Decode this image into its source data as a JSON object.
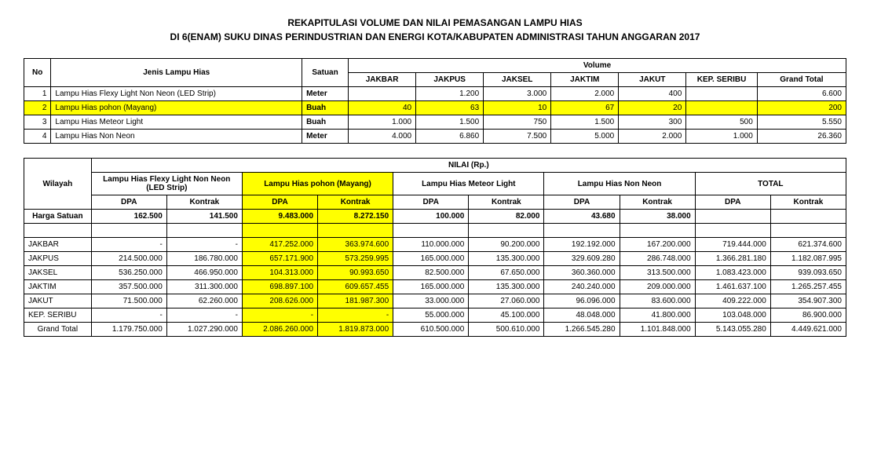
{
  "title_l1": "REKAPITULASI VOLUME DAN NILAI PEMASANGAN LAMPU HIAS",
  "title_l2": "DI 6(ENAM) SUKU DINAS PERINDUSTRIAN DAN ENERGI KOTA/KABUPATEN ADMINISTRASI TAHUN ANGGARAN 2017",
  "t1": {
    "h_no": "No",
    "h_jenis": "Jenis Lampu Hias",
    "h_satuan": "Satuan",
    "h_volume": "Volume",
    "regions": [
      "JAKBAR",
      "JAKPUS",
      "JAKSEL",
      "JAKTIM",
      "JAKUT",
      "KEP. SERIBU"
    ],
    "h_gt": "Grand Total",
    "rows": [
      {
        "no": "1",
        "jenis": "Lampu Hias Flexy Light Non Neon (LED Strip)",
        "sat": "Meter",
        "v": [
          "",
          "1.200",
          "3.000",
          "2.000",
          "400",
          ""
        ],
        "gt": "6.600",
        "hl": false
      },
      {
        "no": "2",
        "jenis": "Lampu Hias pohon (Mayang)",
        "sat": "Buah",
        "v": [
          "40",
          "63",
          "10",
          "67",
          "20",
          ""
        ],
        "gt": "200",
        "hl": true
      },
      {
        "no": "3",
        "jenis": "Lampu Hias Meteor Light",
        "sat": "Buah",
        "v": [
          "1.000",
          "1.500",
          "750",
          "1.500",
          "300",
          "500"
        ],
        "gt": "5.550",
        "hl": false
      },
      {
        "no": "4",
        "jenis": "Lampu Hias Non Neon",
        "sat": "Meter",
        "v": [
          "4.000",
          "6.860",
          "7.500",
          "5.000",
          "2.000",
          "1.000"
        ],
        "gt": "26.360",
        "hl": false
      }
    ]
  },
  "t2": {
    "h_wilayah": "Wilayah",
    "h_nilai": "NILAI (Rp.)",
    "h_dpa": "DPA",
    "h_kontrak": "Kontrak",
    "h_total": "TOTAL",
    "h_harga": "Harga Satuan",
    "groups": [
      "Lampu Hias Flexy Light Non Neon (LED Strip)",
      "Lampu Hias pohon (Mayang)",
      "Lampu Hias Meteor Light",
      "Lampu Hias Non Neon"
    ],
    "group_hl": [
      false,
      true,
      false,
      false
    ],
    "harga": [
      "162.500",
      "141.500",
      "9.483.000",
      "8.272.150",
      "100.000",
      "82.000",
      "43.680",
      "38.000",
      "",
      ""
    ],
    "rows": [
      {
        "w": "JAKBAR",
        "v": [
          "-",
          "-",
          "417.252.000",
          "363.974.600",
          "110.000.000",
          "90.200.000",
          "192.192.000",
          "167.200.000",
          "719.444.000",
          "621.374.600"
        ]
      },
      {
        "w": "JAKPUS",
        "v": [
          "214.500.000",
          "186.780.000",
          "657.171.900",
          "573.259.995",
          "165.000.000",
          "135.300.000",
          "329.609.280",
          "286.748.000",
          "1.366.281.180",
          "1.182.087.995"
        ]
      },
      {
        "w": "JAKSEL",
        "v": [
          "536.250.000",
          "466.950.000",
          "104.313.000",
          "90.993.650",
          "82.500.000",
          "67.650.000",
          "360.360.000",
          "313.500.000",
          "1.083.423.000",
          "939.093.650"
        ]
      },
      {
        "w": "JAKTIM",
        "v": [
          "357.500.000",
          "311.300.000",
          "698.897.100",
          "609.657.455",
          "165.000.000",
          "135.300.000",
          "240.240.000",
          "209.000.000",
          "1.461.637.100",
          "1.265.257.455"
        ]
      },
      {
        "w": "JAKUT",
        "v": [
          "71.500.000",
          "62.260.000",
          "208.626.000",
          "181.987.300",
          "33.000.000",
          "27.060.000",
          "96.096.000",
          "83.600.000",
          "409.222.000",
          "354.907.300"
        ]
      },
      {
        "w": "KEP. SERIBU",
        "v": [
          "-",
          "-",
          "-",
          "-",
          "55.000.000",
          "45.100.000",
          "48.048.000",
          "41.800.000",
          "103.048.000",
          "86.900.000"
        ]
      }
    ],
    "gt_label": "Grand Total",
    "gt": [
      "1.179.750.000",
      "1.027.290.000",
      "2.086.260.000",
      "1.819.873.000",
      "610.500.000",
      "500.610.000",
      "1.266.545.280",
      "1.101.848.000",
      "5.143.055.280",
      "4.449.621.000"
    ]
  },
  "colors": {
    "highlight": "#ffff00"
  }
}
